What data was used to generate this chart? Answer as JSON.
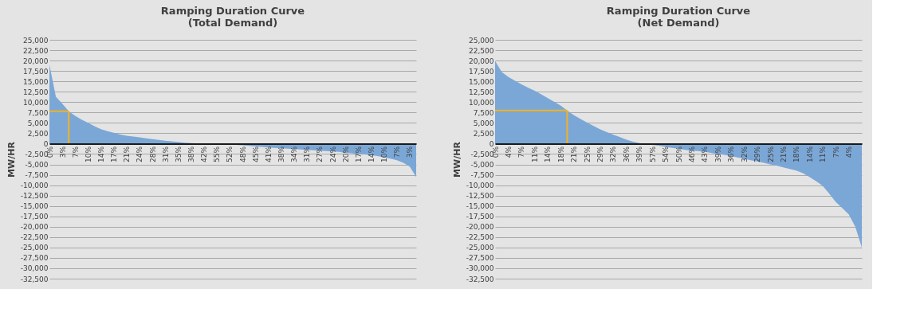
{
  "chart_data": [
    {
      "type": "area",
      "title": "Ramping Duration Curve\n(Total Demand)",
      "ylabel": "MW/HR",
      "categories": [
        "0%",
        null,
        "3%",
        null,
        "7%",
        null,
        "10%",
        null,
        "14%",
        null,
        "17%",
        null,
        "21%",
        null,
        "24%",
        null,
        "28%",
        null,
        "31%",
        null,
        "35%",
        null,
        "38%",
        null,
        "42%",
        null,
        "55%",
        null,
        "52%",
        null,
        "48%",
        null,
        "45%",
        null,
        "41%",
        null,
        "38%",
        null,
        "34%",
        null,
        "31%",
        null,
        "27%",
        null,
        "24%",
        null,
        "20%",
        null,
        "17%",
        null,
        "14%",
        null,
        "10%",
        null,
        "7%",
        null,
        "3%",
        null
      ],
      "series": [
        {
          "color": "#7ba7d7",
          "values": [
            19000,
            11300,
            9600,
            7800,
            6700,
            5800,
            5000,
            4200,
            3500,
            3000,
            2600,
            2200,
            1900,
            1700,
            1500,
            1300,
            1100,
            900,
            700,
            550,
            400,
            250,
            150,
            50,
            0,
            0,
            -50,
            -100,
            -200,
            -300,
            -400,
            -550,
            -700,
            -800,
            -900,
            -1000,
            -1100,
            -1200,
            -1300,
            -1400,
            -1500,
            -1600,
            -1700,
            -1800,
            -1900,
            -2000,
            -2200,
            -2300,
            -2500,
            -2600,
            -2800,
            -3000,
            -3300,
            -3600,
            -4000,
            -4600,
            -5500,
            -8000
          ]
        },
        {
          "type": "line",
          "color": "#f0b323",
          "values": [
            7800,
            7800,
            7800,
            7800,
            null,
            null,
            null,
            null,
            null,
            null,
            null,
            null,
            null,
            null,
            null,
            null,
            null,
            null,
            null,
            null,
            null,
            null,
            null,
            null,
            null,
            null,
            null,
            null,
            null,
            null,
            null,
            null,
            null,
            null,
            null,
            null,
            null,
            null,
            null,
            null,
            null,
            null,
            null,
            null,
            null,
            null,
            null,
            null,
            null,
            null,
            null,
            null,
            null,
            null,
            null,
            null,
            null,
            null
          ],
          "errors": [
            null,
            null,
            null,
            [
              0,
              7800
            ],
            null,
            null,
            null,
            null,
            null,
            null,
            null,
            null,
            null,
            null,
            null,
            null,
            null,
            null,
            null,
            null,
            null,
            null,
            null,
            null,
            null,
            null,
            null,
            null,
            null,
            null,
            null,
            null,
            null,
            null,
            null,
            null,
            null,
            null,
            null,
            null,
            null,
            null,
            null,
            null,
            null,
            null,
            null,
            null,
            null,
            null,
            null,
            null,
            null,
            null,
            null,
            null,
            null,
            null
          ]
        }
      ],
      "ylim": [
        -32500,
        25000
      ],
      "yticks": [
        {
          "value": -32500,
          "label": "-32,500"
        },
        {
          "value": -30000,
          "label": "-30,000"
        },
        {
          "value": -27500,
          "label": "-27,500"
        },
        {
          "value": -25000,
          "label": "-25,000"
        },
        {
          "value": -22500,
          "label": "-22,500"
        },
        {
          "value": -20000,
          "label": "-20,000"
        },
        {
          "value": -17500,
          "label": "-17,500"
        },
        {
          "value": -15000,
          "label": "-15,000"
        },
        {
          "value": -12500,
          "label": "-12,500"
        },
        {
          "value": -10000,
          "label": "-10,000"
        },
        {
          "value": -7500,
          "label": "-7,500"
        },
        {
          "value": -5000,
          "label": "-5,000"
        },
        {
          "value": -2500,
          "label": "-2,500"
        },
        0,
        {
          "value": 2500,
          "label": "2,500"
        },
        {
          "value": 5000,
          "label": "5,000"
        },
        {
          "value": 7500,
          "label": "7,500"
        },
        {
          "value": 10000,
          "label": "10,000"
        },
        {
          "value": 12500,
          "label": "12,500"
        },
        {
          "value": 15000,
          "label": "15,000"
        },
        {
          "value": 17500,
          "label": "17,500"
        },
        {
          "value": 20000,
          "label": "20,000"
        },
        {
          "value": 22500,
          "label": "22,500"
        },
        {
          "value": 25000,
          "label": "25,000"
        }
      ],
      "grid": "y"
    },
    {
      "type": "area",
      "title": "Ramping Duration Curve\n(Net Demand)",
      "ylabel": "MW/HR",
      "categories": [
        "0%",
        null,
        "4%",
        null,
        "7%",
        null,
        "11%",
        null,
        "14%",
        null,
        "18%",
        null,
        "21%",
        null,
        "25%",
        null,
        "29%",
        null,
        "32%",
        null,
        "36%",
        null,
        "39%",
        null,
        "57%",
        null,
        "54%",
        null,
        "50%",
        null,
        "46%",
        null,
        "43%",
        null,
        "39%",
        null,
        "36%",
        null,
        "32%",
        null,
        "29%",
        null,
        "25%",
        null,
        "21%",
        null,
        "18%",
        null,
        "14%",
        null,
        "11%",
        null,
        "7%",
        null,
        "4%",
        null,
        null
      ],
      "series": [
        {
          "color": "#7ba7d7",
          "values": [
            19900,
            17300,
            16100,
            15200,
            14300,
            13500,
            12800,
            11900,
            11000,
            10100,
            9200,
            8000,
            6900,
            6000,
            5100,
            4300,
            3500,
            2800,
            2200,
            1600,
            1000,
            500,
            150,
            0,
            -300,
            -500,
            -800,
            -1000,
            -1200,
            -1500,
            -1700,
            -1800,
            -2000,
            -2200,
            -2500,
            -2700,
            -3000,
            -3300,
            -3600,
            -4000,
            -4300,
            -4600,
            -5000,
            -5300,
            -5700,
            -6100,
            -6500,
            -7100,
            -8000,
            -9000,
            -10100,
            -12000,
            -14000,
            -15500,
            -17000,
            -20000,
            -25000
          ]
        },
        {
          "type": "line",
          "color": "#f0b323",
          "values": [
            8000,
            8000,
            8000,
            8000,
            8000,
            8000,
            8000,
            8000,
            8000,
            8000,
            8000,
            8000,
            null,
            null,
            null,
            null,
            null,
            null,
            null,
            null,
            null,
            null,
            null,
            null,
            null,
            null,
            null,
            null,
            null,
            null,
            null,
            null,
            null,
            null,
            null,
            null,
            null,
            null,
            null,
            null,
            null,
            null,
            null,
            null,
            null,
            null,
            null,
            null,
            null,
            null,
            null,
            null,
            null,
            null,
            null,
            null,
            null
          ],
          "errors": [
            null,
            null,
            null,
            null,
            null,
            null,
            null,
            null,
            null,
            null,
            null,
            [
              0,
              8000
            ],
            null,
            null,
            null,
            null,
            null,
            null,
            null,
            null,
            null,
            null,
            null,
            null,
            null,
            null,
            null,
            null,
            null,
            null,
            null,
            null,
            null,
            null,
            null,
            null,
            null,
            null,
            null,
            null,
            null,
            null,
            null,
            null,
            null,
            null,
            null,
            null,
            null,
            null,
            null,
            null,
            null,
            null,
            null,
            null,
            null
          ]
        }
      ],
      "ylim": [
        -32500,
        25000
      ],
      "yticks": [
        {
          "value": -32500,
          "label": "-32,500"
        },
        {
          "value": -30000,
          "label": "-30,000"
        },
        {
          "value": -27500,
          "label": "-27,500"
        },
        {
          "value": -25000,
          "label": "-25,000"
        },
        {
          "value": -22500,
          "label": "-22,500"
        },
        {
          "value": -20000,
          "label": "-20,000"
        },
        {
          "value": -17500,
          "label": "-17,500"
        },
        {
          "value": -15000,
          "label": "-15,000"
        },
        {
          "value": -12500,
          "label": "-12,500"
        },
        {
          "value": -10000,
          "label": "-10,000"
        },
        {
          "value": -7500,
          "label": "-7,500"
        },
        {
          "value": -5000,
          "label": "-5,000"
        },
        {
          "value": -2500,
          "label": "-2,500"
        },
        0,
        {
          "value": 2500,
          "label": "2,500"
        },
        {
          "value": 5000,
          "label": "5,000"
        },
        {
          "value": 7500,
          "label": "7,500"
        },
        {
          "value": 10000,
          "label": "10,000"
        },
        {
          "value": 12500,
          "label": "12,500"
        },
        {
          "value": 15000,
          "label": "15,000"
        },
        {
          "value": 17500,
          "label": "17,500"
        },
        {
          "value": 20000,
          "label": "20,000"
        },
        {
          "value": 22500,
          "label": "22,500"
        },
        {
          "value": 25000,
          "label": "25,000"
        }
      ],
      "grid": "y"
    }
  ]
}
